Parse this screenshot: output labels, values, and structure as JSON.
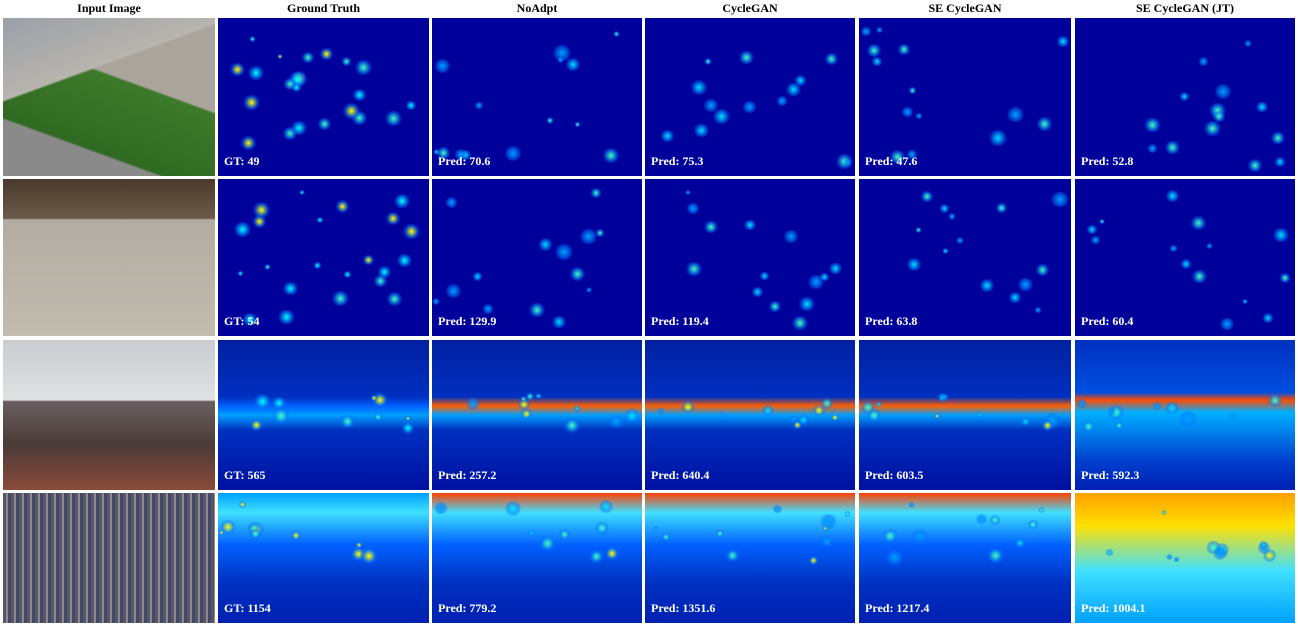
{
  "headers": [
    "Input Image",
    "Ground Truth",
    "NoAdpt",
    "CycleGAN",
    "SE CycleGAN",
    "SE CycleGAN (JT)"
  ],
  "rows": [
    {
      "labels": [
        "GT: 49",
        "Pred: 70.6",
        "Pred: 75.3",
        "Pred: 47.6",
        "Pred: 52.8"
      ]
    },
    {
      "labels": [
        "GT: 54",
        "Pred: 129.9",
        "Pred: 119.4",
        "Pred: 63.8",
        "Pred: 60.4"
      ]
    },
    {
      "labels": [
        "GT: 565",
        "Pred: 257.2",
        "Pred: 640.4",
        "Pred: 603.5",
        "Pred: 592.3"
      ]
    },
    {
      "labels": [
        "GT: 1154",
        "Pred: 779.2",
        "Pred: 1351.6",
        "Pred: 1217.4",
        "Pred: 1004.1"
      ]
    }
  ]
}
